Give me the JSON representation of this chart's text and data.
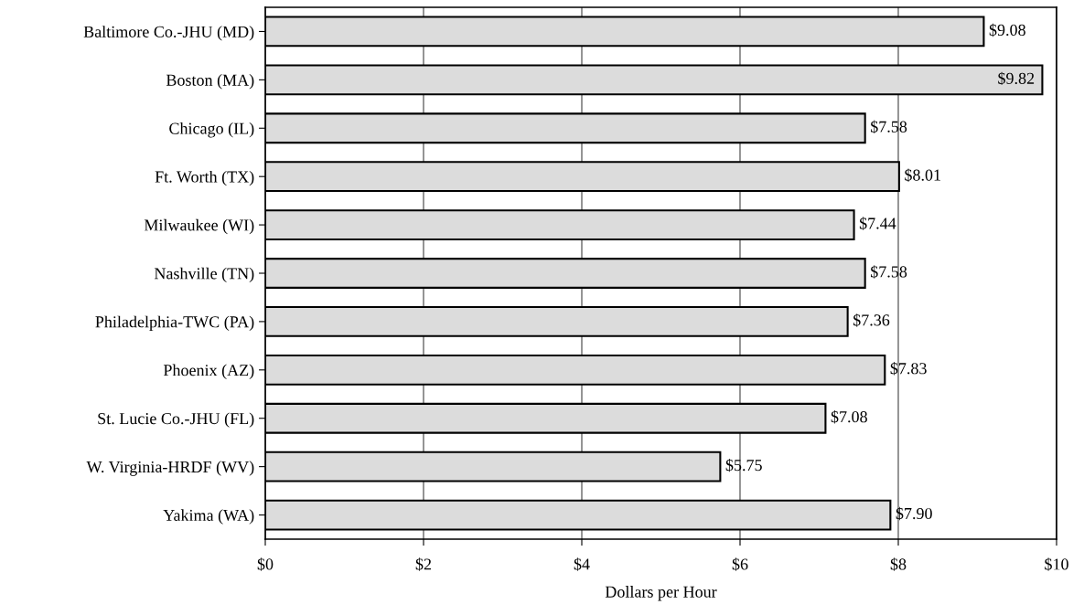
{
  "chart_data": {
    "type": "bar",
    "orientation": "horizontal",
    "xlabel": "Dollars per Hour",
    "categories": [
      "Baltimore Co.-JHU (MD)",
      "Boston (MA)",
      "Chicago (IL)",
      "Ft. Worth (TX)",
      "Milwaukee (WI)",
      "Nashville (TN)",
      "Philadelphia-TWC (PA)",
      "Phoenix (AZ)",
      "St. Lucie Co.-JHU (FL)",
      "W. Virginia-HRDF (WV)",
      "Yakima (WA)"
    ],
    "values": [
      9.08,
      9.82,
      7.58,
      8.01,
      7.44,
      7.58,
      7.36,
      7.83,
      7.08,
      5.75,
      7.9
    ],
    "value_labels": [
      "$9.08",
      "$9.82",
      "$7.58",
      "$8.01",
      "$7.44",
      "$7.58",
      "$7.36",
      "$7.83",
      "$7.08",
      "$5.75",
      "$7.90"
    ],
    "color": "#dcdcdc",
    "xlim": [
      0,
      10
    ],
    "xticks": [
      {
        "value": 0,
        "label": "$0"
      },
      {
        "value": 2,
        "label": "$2"
      },
      {
        "value": 4,
        "label": "$4"
      },
      {
        "value": 6,
        "label": "$6"
      },
      {
        "value": 8,
        "label": "$8"
      },
      {
        "value": 10,
        "label": "$10"
      }
    ],
    "grid": "x",
    "legend": false
  }
}
